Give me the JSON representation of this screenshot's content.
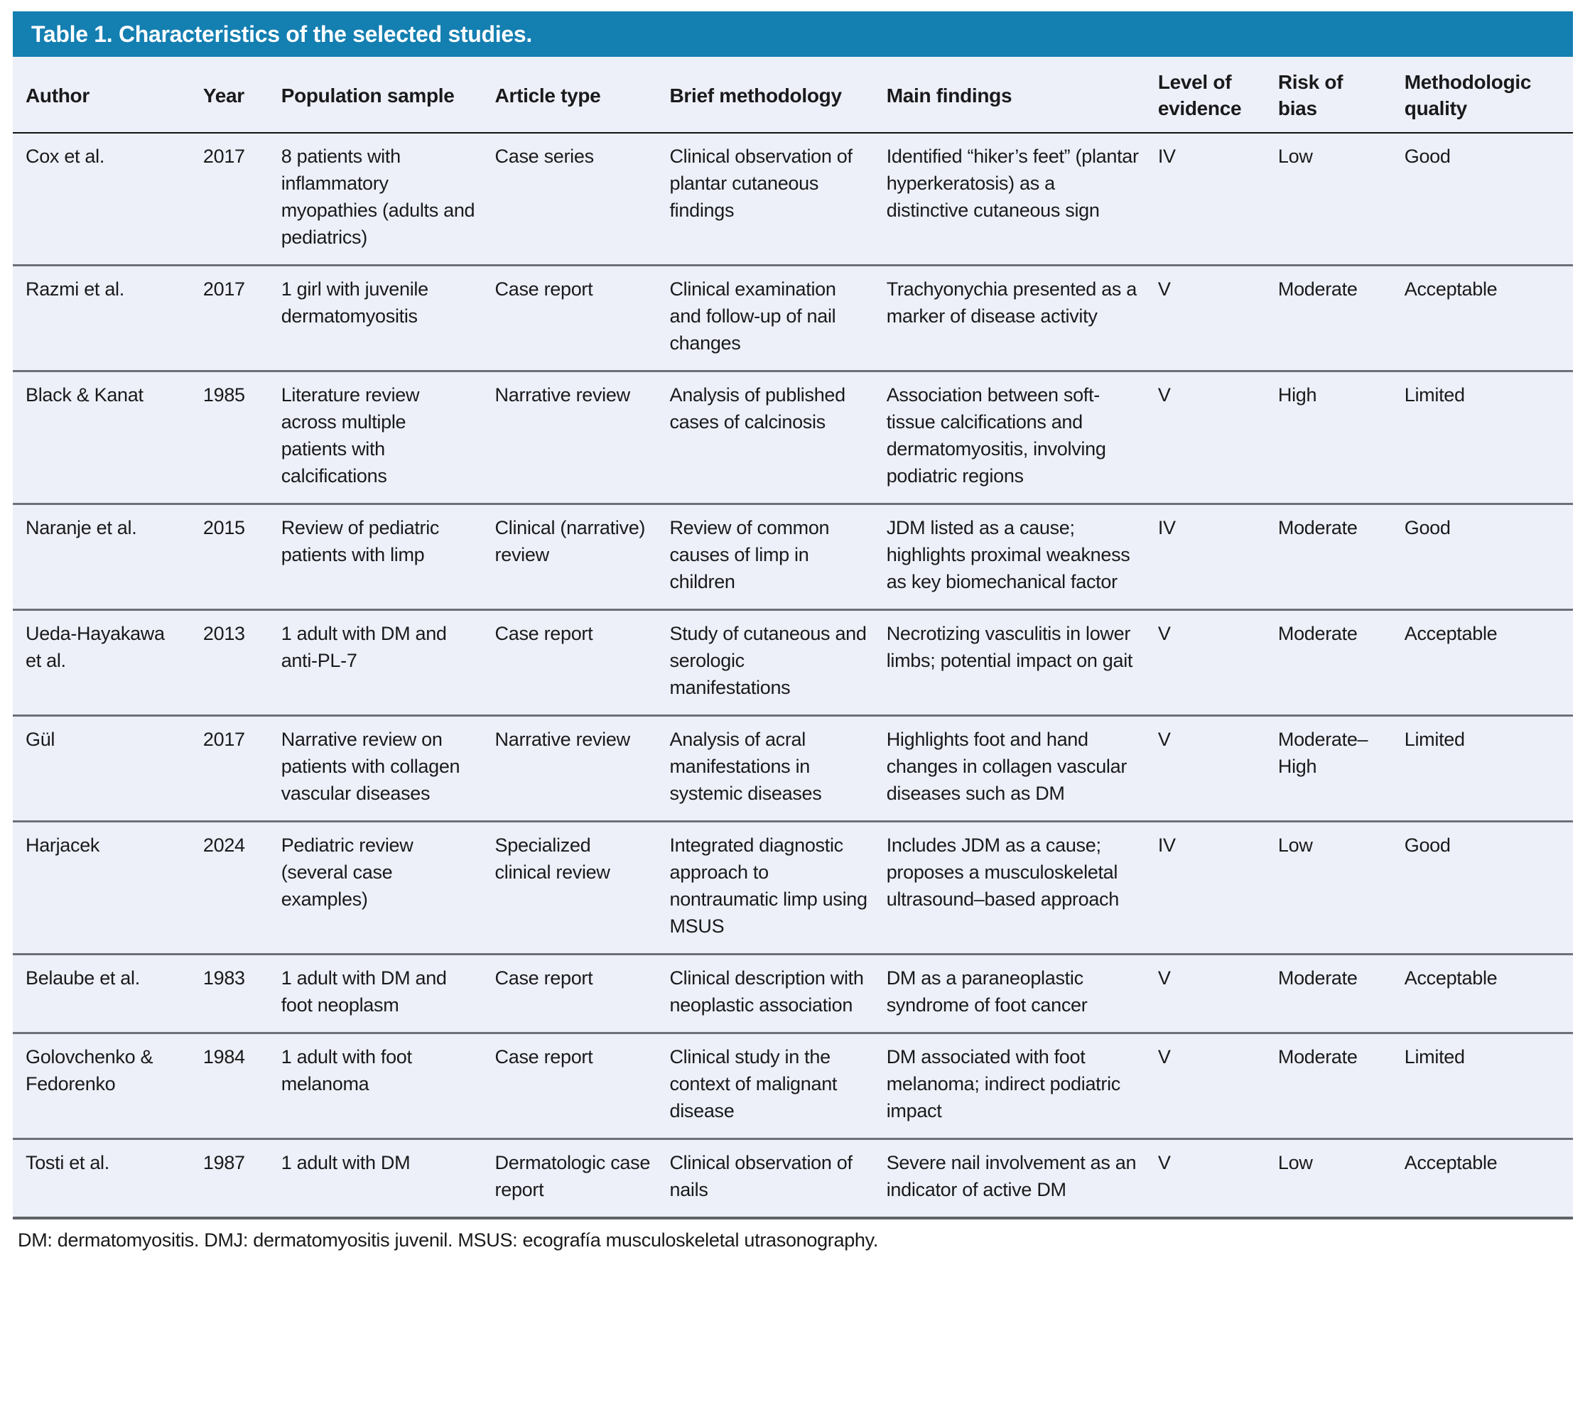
{
  "title": "Table 1. Characteristics of the selected studies.",
  "colors": {
    "header_bar": "#147fb1",
    "table_body_bg": "#edf0f8",
    "title_text": "#ffffff",
    "body_text": "#1a1a1c",
    "row_divider": "#6d7177",
    "header_underline": "#111111",
    "bottom_border": "#5f6368"
  },
  "columns": {
    "author": "Author",
    "year": "Year",
    "population": "Population sample",
    "article_type": "Article type",
    "methodology": "Brief methodology",
    "findings": "Main findings",
    "evidence": "Level of evidence",
    "bias": "Risk of bias",
    "quality": "Methodologic quality"
  },
  "rows": [
    {
      "author": "Cox et al.",
      "year": "2017",
      "population": "8 patients with inflammatory myopathies (adults and pediatrics)",
      "article_type": "Case series",
      "methodology": "Clinical observation of plantar cutaneous findings",
      "findings": "Identified “hiker’s feet” (plantar hyperkeratosis) as a distinctive cutaneous sign",
      "evidence": "IV",
      "bias": "Low",
      "quality": "Good"
    },
    {
      "author": "Razmi et al.",
      "year": "2017",
      "population": "1 girl with juvenile dermatomyositis",
      "article_type": "Case report",
      "methodology": "Clinical examination and follow-up of nail changes",
      "findings": "Trachyonychia presented as a marker of disease activity",
      "evidence": "V",
      "bias": "Moderate",
      "quality": "Acceptable"
    },
    {
      "author": "Black & Kanat",
      "year": "1985",
      "population": "Literature review across multiple patients with calcifications",
      "article_type": "Narrative review",
      "methodology": "Analysis of published cases of calcinosis",
      "findings": "Association between soft-tissue calcifications and dermatomyositis, involving podiatric regions",
      "evidence": "V",
      "bias": "High",
      "quality": "Limited"
    },
    {
      "author": "Naranje et al.",
      "year": "2015",
      "population": "Review of pediatric patients with limp",
      "article_type": "Clinical (narrative) review",
      "methodology": "Review of common causes of limp in children",
      "findings": "JDM listed as a cause; highlights proximal weakness as key biomechanical factor",
      "evidence": "IV",
      "bias": "Moderate",
      "quality": "Good"
    },
    {
      "author": "Ueda-Hayakawa et al.",
      "year": "2013",
      "population": "1 adult with DM and anti-PL-7",
      "article_type": "Case report",
      "methodology": "Study of cutaneous and serologic manifestations",
      "findings": "Necrotizing vasculitis in lower limbs; potential impact on gait",
      "evidence": "V",
      "bias": "Moderate",
      "quality": "Acceptable"
    },
    {
      "author": "Gül",
      "year": "2017",
      "population": "Narrative review on patients with collagen vascular diseases",
      "article_type": "Narrative review",
      "methodology": "Analysis of acral manifestations in systemic diseases",
      "findings": "Highlights foot and hand changes in collagen vascular diseases such as DM",
      "evidence": "V",
      "bias": "Moderate–High",
      "quality": "Limited"
    },
    {
      "author": "Harjacek",
      "year": "2024",
      "population": "Pediatric review (several case examples)",
      "article_type": "Specialized clinical review",
      "methodology": "Integrated diagnostic approach to nontraumatic limp using MSUS",
      "findings": "Includes JDM as a cause; proposes a musculoskeletal ultrasound–based approach",
      "evidence": "IV",
      "bias": "Low",
      "quality": "Good"
    },
    {
      "author": "Belaube et al.",
      "year": "1983",
      "population": "1 adult with DM and foot neoplasm",
      "article_type": "Case report",
      "methodology": "Clinical description with neoplastic association",
      "findings": "DM as a paraneoplastic syndrome of foot cancer",
      "evidence": "V",
      "bias": "Moderate",
      "quality": "Acceptable"
    },
    {
      "author": "Golovchenko & Fedorenko",
      "year": "1984",
      "population": "1 adult with foot melanoma",
      "article_type": "Case report",
      "methodology": "Clinical study in the context of malignant disease",
      "findings": "DM associated with foot melanoma; indirect podiatric impact",
      "evidence": "V",
      "bias": "Moderate",
      "quality": "Limited"
    },
    {
      "author": "Tosti et al.",
      "year": "1987",
      "population": "1 adult with DM",
      "article_type": "Dermatologic case report",
      "methodology": "Clinical observation of nails",
      "findings": "Severe nail involvement as an indicator of active DM",
      "evidence": "V",
      "bias": "Low",
      "quality": "Acceptable"
    }
  ],
  "footnote": "DM: dermatomyositis. DMJ: dermatomyositis juvenil. MSUS: ecografía musculoskeletal utrasonography."
}
